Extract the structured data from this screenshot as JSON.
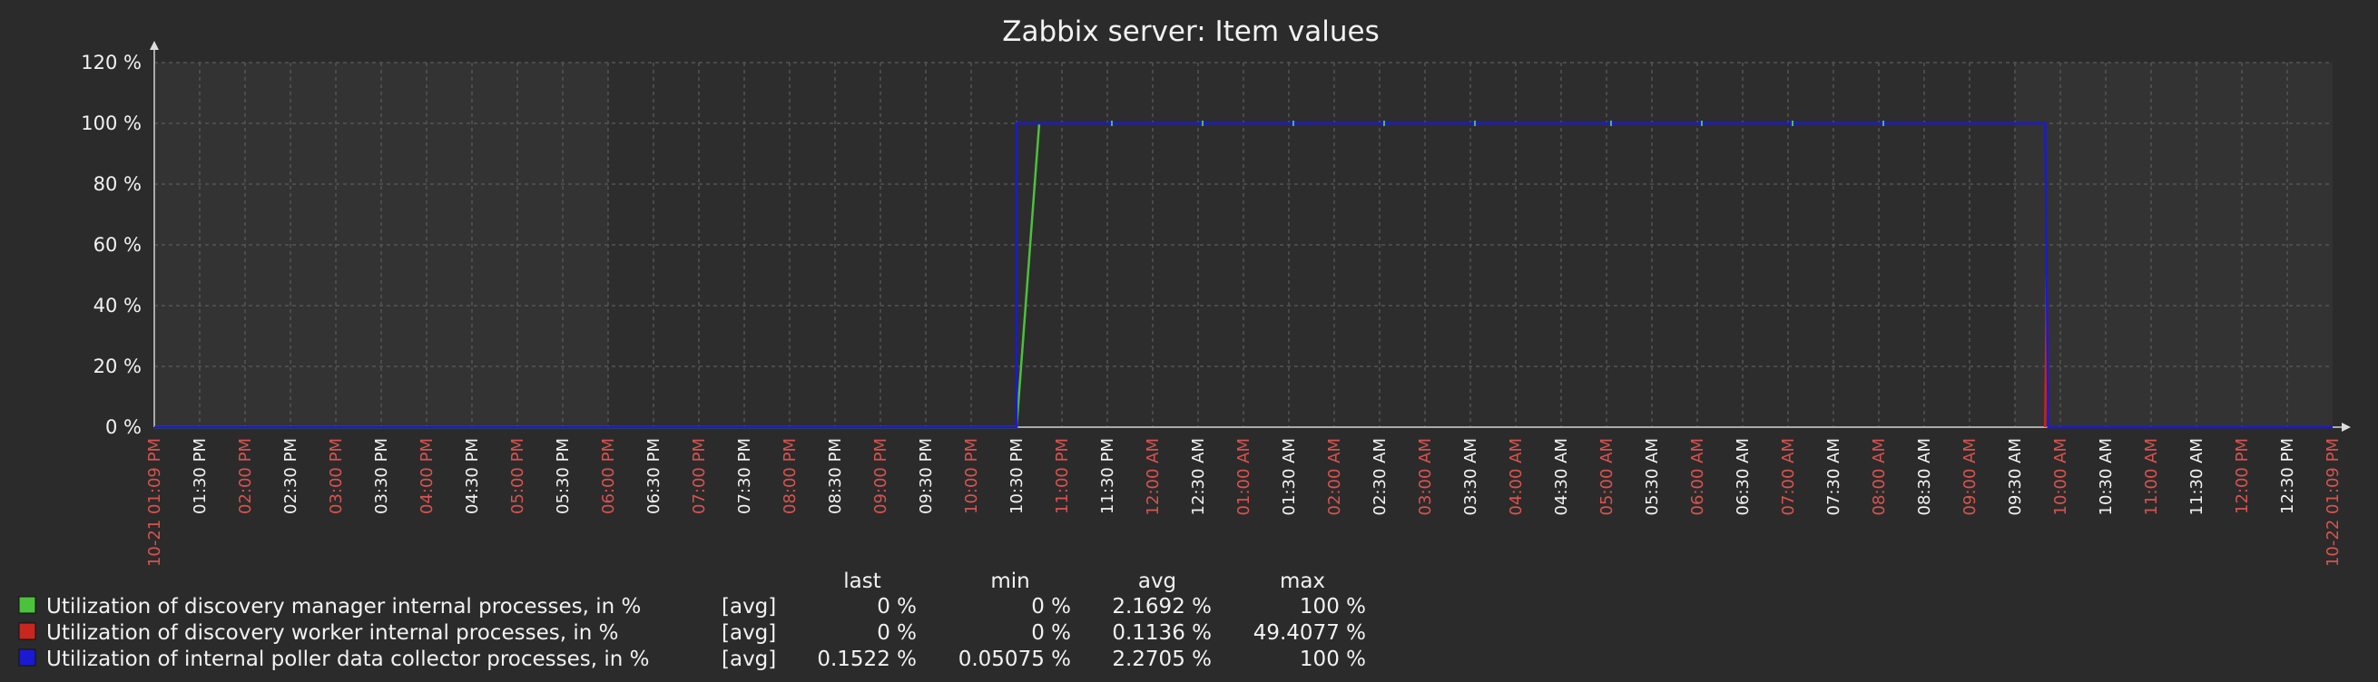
{
  "chart_data": {
    "type": "line",
    "title": "Zabbix server: Item values",
    "y_ticks": [
      "0 %",
      "20 %",
      "40 %",
      "60 %",
      "80 %",
      "100 %",
      "120 %"
    ],
    "ylim": [
      0,
      120
    ],
    "grid": true,
    "x_ticks": [
      {
        "label": "10-21 01:09 PM",
        "color": "red"
      },
      {
        "label": "01:30 PM",
        "color": "white"
      },
      {
        "label": "02:00 PM",
        "color": "red"
      },
      {
        "label": "02:30 PM",
        "color": "white"
      },
      {
        "label": "03:00 PM",
        "color": "red"
      },
      {
        "label": "03:30 PM",
        "color": "white"
      },
      {
        "label": "04:00 PM",
        "color": "red"
      },
      {
        "label": "04:30 PM",
        "color": "white"
      },
      {
        "label": "05:00 PM",
        "color": "red"
      },
      {
        "label": "05:30 PM",
        "color": "white"
      },
      {
        "label": "06:00 PM",
        "color": "red"
      },
      {
        "label": "06:30 PM",
        "color": "white"
      },
      {
        "label": "07:00 PM",
        "color": "red"
      },
      {
        "label": "07:30 PM",
        "color": "white"
      },
      {
        "label": "08:00 PM",
        "color": "red"
      },
      {
        "label": "08:30 PM",
        "color": "white"
      },
      {
        "label": "09:00 PM",
        "color": "red"
      },
      {
        "label": "09:30 PM",
        "color": "white"
      },
      {
        "label": "10:00 PM",
        "color": "red"
      },
      {
        "label": "10:30 PM",
        "color": "white"
      },
      {
        "label": "11:00 PM",
        "color": "red"
      },
      {
        "label": "11:30 PM",
        "color": "white"
      },
      {
        "label": "12:00 AM",
        "color": "red"
      },
      {
        "label": "12:30 AM",
        "color": "white"
      },
      {
        "label": "01:00 AM",
        "color": "red"
      },
      {
        "label": "01:30 AM",
        "color": "white"
      },
      {
        "label": "02:00 AM",
        "color": "red"
      },
      {
        "label": "02:30 AM",
        "color": "white"
      },
      {
        "label": "03:00 AM",
        "color": "red"
      },
      {
        "label": "03:30 AM",
        "color": "white"
      },
      {
        "label": "04:00 AM",
        "color": "red"
      },
      {
        "label": "04:30 AM",
        "color": "white"
      },
      {
        "label": "05:00 AM",
        "color": "red"
      },
      {
        "label": "05:30 AM",
        "color": "white"
      },
      {
        "label": "06:00 AM",
        "color": "red"
      },
      {
        "label": "06:30 AM",
        "color": "white"
      },
      {
        "label": "07:00 AM",
        "color": "red"
      },
      {
        "label": "07:30 AM",
        "color": "white"
      },
      {
        "label": "08:00 AM",
        "color": "red"
      },
      {
        "label": "08:30 AM",
        "color": "white"
      },
      {
        "label": "09:00 AM",
        "color": "red"
      },
      {
        "label": "09:30 AM",
        "color": "white"
      },
      {
        "label": "10:00 AM",
        "color": "red"
      },
      {
        "label": "10:30 AM",
        "color": "white"
      },
      {
        "label": "11:00 AM",
        "color": "red"
      },
      {
        "label": "11:30 AM",
        "color": "white"
      },
      {
        "label": "12:00 PM",
        "color": "red"
      },
      {
        "label": "12:30 PM",
        "color": "white"
      },
      {
        "label": "10-22 01:09 PM",
        "color": "red"
      }
    ],
    "shaded_periods": [
      {
        "from": "06:00 PM",
        "to": "09:30 AM"
      }
    ],
    "series": [
      {
        "name": "Utilization of discovery manager internal processes, in %",
        "color": "#4cc13c",
        "points": [
          [
            "10-21 01:09 PM",
            0
          ],
          [
            "10:30 PM",
            0
          ],
          [
            "10:45 PM",
            100
          ]
        ]
      },
      {
        "name": "Utilization of discovery worker internal processes, in %",
        "color": "#c8261e",
        "points": [
          [
            "09:50 AM",
            0
          ],
          [
            "09:51 AM",
            49.4077
          ],
          [
            "09:52 AM",
            0
          ]
        ]
      },
      {
        "name": "Utilization of internal poller data collector processes, in %",
        "color": "#1c1ad0",
        "points": [
          [
            "10-21 01:09 PM",
            0
          ],
          [
            "10:30 PM",
            0
          ],
          [
            "10:30 PM",
            100
          ],
          [
            "10:40 PM",
            100
          ],
          [
            "09:30 AM",
            100
          ],
          [
            "09:50 AM",
            100
          ],
          [
            "09:52 AM",
            0
          ],
          [
            "10-22 01:09 PM",
            0
          ]
        ]
      }
    ],
    "legend_headers": [
      "last",
      "min",
      "avg",
      "max"
    ],
    "legend": [
      {
        "color": "#4cc13c",
        "name": "Utilization of discovery manager internal processes, in %",
        "func": "[avg]",
        "last": "0 %",
        "min": "0 %",
        "avg": "2.1692 %",
        "max": "100 %"
      },
      {
        "color": "#c8261e",
        "name": "Utilization of discovery worker internal processes, in %",
        "func": "[avg]",
        "last": "0 %",
        "min": "0 %",
        "avg": "0.1136 %",
        "max": "49.4077 %"
      },
      {
        "color": "#1c1ad0",
        "name": "Utilization of internal poller data collector processes, in %",
        "func": "[avg]",
        "last": "0.1522 %",
        "min": "0.05075 %",
        "avg": "2.2705 %",
        "max": "100 %"
      }
    ]
  }
}
